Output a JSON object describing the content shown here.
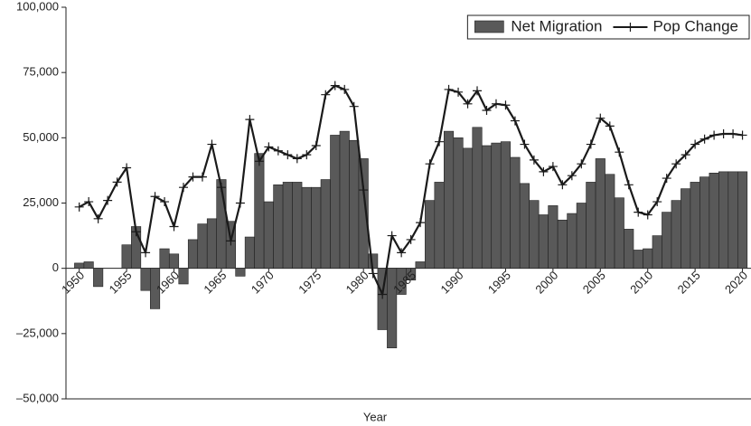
{
  "chart_data": {
    "type": "bar",
    "x_label": "Year",
    "x": [
      1950,
      1951,
      1952,
      1953,
      1954,
      1955,
      1956,
      1957,
      1958,
      1959,
      1960,
      1961,
      1962,
      1963,
      1964,
      1965,
      1966,
      1967,
      1968,
      1969,
      1970,
      1971,
      1972,
      1973,
      1974,
      1975,
      1976,
      1977,
      1978,
      1979,
      1980,
      1981,
      1982,
      1983,
      1984,
      1985,
      1986,
      1987,
      1988,
      1989,
      1990,
      1991,
      1992,
      1993,
      1994,
      1995,
      1996,
      1997,
      1998,
      1999,
      2000,
      2001,
      2002,
      2003,
      2004,
      2005,
      2006,
      2007,
      2008,
      2009,
      2010,
      2011,
      2012,
      2013,
      2014,
      2015,
      2016,
      2017,
      2018,
      2019,
      2020
    ],
    "xlim": [
      1948.6,
      2020.9
    ],
    "xticks": [
      1950,
      1955,
      1960,
      1965,
      1970,
      1975,
      1980,
      1985,
      1990,
      1995,
      2000,
      2005,
      2010,
      2015,
      2020
    ],
    "ylim": [
      -50000,
      100000
    ],
    "yticks": [
      {
        "value": -50000,
        "label": "–50,000"
      },
      {
        "value": -25000,
        "label": "–25,000"
      },
      0,
      {
        "value": 25000,
        "label": "25,000"
      },
      {
        "value": 50000,
        "label": "50,000"
      },
      {
        "value": 75000,
        "label": "75,000"
      },
      {
        "value": 100000,
        "label": "100,000"
      }
    ],
    "grid": false,
    "legend": "top-right",
    "series": [
      {
        "name": "Net Migration",
        "type": "bar",
        "color": "#595959",
        "values": [
          2000,
          2500,
          -7000,
          0,
          0,
          9000,
          16000,
          -8500,
          -15500,
          7500,
          5500,
          -6000,
          11000,
          17000,
          19000,
          34000,
          18000,
          -3000,
          12000,
          44000,
          25500,
          32000,
          33000,
          33000,
          31000,
          31000,
          34000,
          51000,
          52500,
          49000,
          42000,
          5500,
          -23500,
          -30500,
          -10000,
          -4500,
          2500,
          26000,
          33000,
          52500,
          50000,
          46000,
          54000,
          47000,
          48000,
          48500,
          42500,
          32500,
          26000,
          20500,
          24000,
          18500,
          21000,
          25000,
          33000,
          42000,
          36000,
          27000,
          15000,
          7000,
          7500,
          12500,
          21500,
          26000,
          30500,
          33000,
          35000,
          36500,
          37000,
          37000,
          37000
        ]
      },
      {
        "name": "Pop Change",
        "type": "line",
        "color": "#1a1a1a",
        "values": [
          23500,
          25500,
          19000,
          26000,
          33000,
          38500,
          14000,
          6000,
          27500,
          25500,
          16000,
          31000,
          35000,
          35000,
          47500,
          31000,
          10500,
          25000,
          57000,
          41000,
          46500,
          45000,
          43500,
          42000,
          43500,
          47000,
          66500,
          70000,
          68500,
          62000,
          30000,
          -2000,
          -10000,
          12500,
          6000,
          11000,
          17500,
          40000,
          48500,
          68500,
          67500,
          63000,
          68000,
          60500,
          63000,
          62500,
          56500,
          47500,
          41500,
          37000,
          39000,
          32000,
          35500,
          40000,
          47500,
          57500,
          54500,
          44500,
          32000,
          21500,
          20500,
          25500,
          34500,
          40000,
          43500,
          47500,
          49500,
          51000,
          51500,
          51500,
          51000
        ]
      }
    ]
  }
}
